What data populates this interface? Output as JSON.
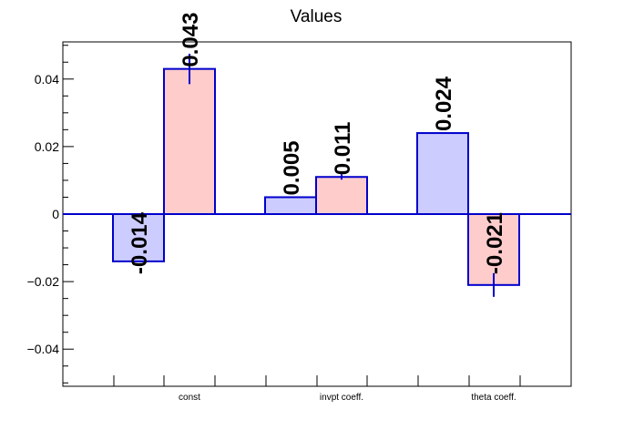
{
  "chart_data": {
    "type": "bar",
    "title": "Values",
    "xlabel": "",
    "ylabel": "",
    "categories": [
      "const",
      "invpt coeff.",
      "theta coeff."
    ],
    "ylim": [
      -0.051,
      0.051
    ],
    "yticks": [
      -0.04,
      -0.02,
      0,
      0.02,
      0.04
    ],
    "ytick_labels": [
      "−0.04",
      "−0.02",
      "0",
      "0.02",
      "0.04"
    ],
    "grid": false,
    "legend": "none",
    "series": [
      {
        "values": [
          -0.014,
          0.005,
          0.024
        ],
        "labels": [
          "-0.014",
          "0.005",
          "0.024"
        ],
        "errors": [
          0,
          0,
          0
        ],
        "fill": "#ccccff",
        "stroke": "#0000cc"
      },
      {
        "values": [
          0.043,
          0.011,
          -0.021
        ],
        "labels": [
          "0.043",
          "0.011",
          "-0.021"
        ],
        "errors": [
          0.0045,
          0.0008,
          0.0035
        ],
        "fill": "#ffcccc",
        "stroke": "#0000cc"
      }
    ]
  }
}
